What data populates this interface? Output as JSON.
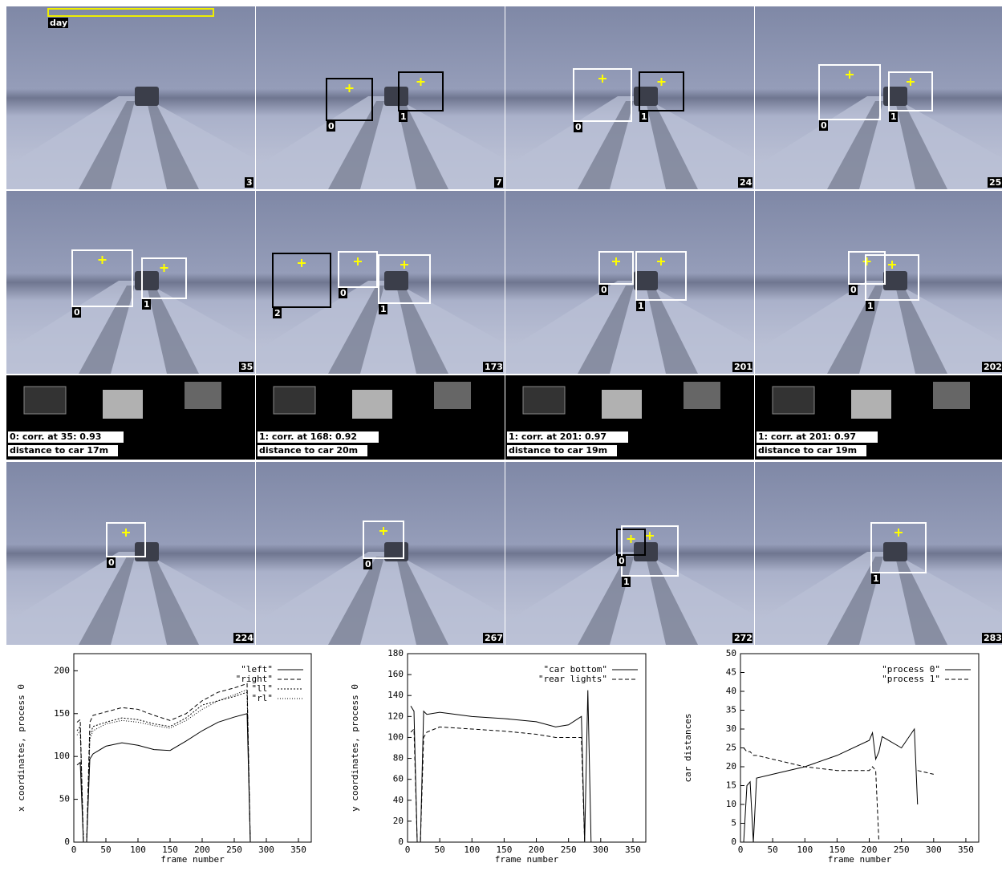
{
  "frames": [
    {
      "number": "3",
      "mode": "day",
      "ids": []
    },
    {
      "number": "7",
      "ids": [
        "0",
        "1"
      ]
    },
    {
      "number": "24",
      "ids": [
        "0",
        "1"
      ]
    },
    {
      "number": "25",
      "ids": [
        "0",
        "1"
      ]
    },
    {
      "number": "35",
      "ids": [
        "0",
        "1"
      ]
    },
    {
      "number": "173",
      "ids": [
        "2",
        "0",
        "1"
      ]
    },
    {
      "number": "201",
      "ids": [
        "0",
        "1"
      ]
    },
    {
      "number": "202",
      "ids": [
        "0",
        "1"
      ]
    },
    {
      "number": "224",
      "ids": [
        "0"
      ]
    },
    {
      "number": "267",
      "ids": [
        "0"
      ]
    },
    {
      "number": "272",
      "ids": [
        "0",
        "1"
      ]
    },
    {
      "number": "283",
      "ids": [
        "1"
      ]
    }
  ],
  "correlations": [
    {
      "corr": "0: corr. at 35: 0.93",
      "distance": "distance to car 17m"
    },
    {
      "corr": "1: corr. at 168: 0.92",
      "distance": "distance to car 20m"
    },
    {
      "corr": "1: corr. at 201: 0.97",
      "distance": "distance to car 19m"
    },
    {
      "corr": "1: corr. at 201: 0.97",
      "distance": "distance to car 19m"
    }
  ],
  "chart_data": [
    {
      "type": "line",
      "xlabel": "frame number",
      "ylabel": "x coordinates, process 0",
      "x": [
        5,
        10,
        15,
        20,
        25,
        30,
        50,
        75,
        100,
        125,
        150,
        175,
        200,
        225,
        250,
        270,
        275
      ],
      "xlim": [
        0,
        370
      ],
      "xticks": [
        0,
        50,
        100,
        150,
        200,
        250,
        300,
        350
      ],
      "ylim": [
        0,
        220
      ],
      "yticks": [
        0,
        50,
        100,
        150,
        200
      ],
      "legend": "upper right",
      "series": [
        {
          "name": "\"left\"",
          "color": "#000000",
          "values": [
            90,
            93,
            0,
            0,
            97,
            103,
            112,
            116,
            113,
            108,
            107,
            118,
            130,
            140,
            146,
            150,
            0
          ]
        },
        {
          "name": "\"right\"",
          "color": "#000000",
          "values": [
            140,
            143,
            0,
            0,
            140,
            148,
            152,
            157,
            155,
            148,
            142,
            150,
            165,
            175,
            180,
            185,
            0
          ]
        },
        {
          "name": "\"ll\"",
          "color": "#000000",
          "values": [
            130,
            135,
            0,
            0,
            125,
            135,
            140,
            145,
            143,
            138,
            135,
            145,
            160,
            165,
            170,
            175,
            0
          ]
        },
        {
          "name": "\"rl\"",
          "color": "#000000",
          "values": [
            125,
            130,
            0,
            0,
            120,
            130,
            138,
            142,
            140,
            136,
            133,
            142,
            155,
            165,
            172,
            178,
            0
          ]
        }
      ]
    },
    {
      "type": "line",
      "xlabel": "frame number",
      "ylabel": "y coordinates, process 0",
      "x": [
        5,
        10,
        15,
        20,
        25,
        30,
        50,
        100,
        150,
        200,
        230,
        250,
        270,
        275,
        280,
        285
      ],
      "xlim": [
        0,
        370
      ],
      "xticks": [
        0,
        50,
        100,
        150,
        200,
        250,
        300,
        350
      ],
      "ylim": [
        0,
        180
      ],
      "yticks": [
        0,
        20,
        40,
        60,
        80,
        100,
        120,
        140,
        160,
        180
      ],
      "legend": "upper right",
      "series": [
        {
          "name": "\"car bottom\"",
          "color": "#000000",
          "values": [
            130,
            125,
            0,
            0,
            125,
            122,
            124,
            120,
            118,
            115,
            110,
            112,
            120,
            0,
            145,
            0
          ]
        },
        {
          "name": "\"rear lights\"",
          "color": "#000000",
          "values": [
            105,
            108,
            0,
            0,
            100,
            105,
            110,
            108,
            106,
            103,
            100,
            100,
            100,
            0,
            null,
            null
          ]
        }
      ]
    },
    {
      "type": "line",
      "xlabel": "frame number",
      "ylabel": "car distances",
      "x": [
        5,
        10,
        15,
        20,
        25,
        50,
        100,
        150,
        200,
        205,
        210,
        215,
        220,
        250,
        270,
        275,
        300
      ],
      "xlim": [
        0,
        370
      ],
      "xticks": [
        0,
        50,
        100,
        150,
        200,
        250,
        300,
        350
      ],
      "ylim": [
        0,
        50
      ],
      "yticks": [
        0,
        5,
        10,
        15,
        20,
        25,
        30,
        35,
        40,
        45,
        50
      ],
      "legend": "upper right",
      "series": [
        {
          "name": "\"process 0\"",
          "color": "#000000",
          "values": [
            0,
            15,
            16,
            0,
            17,
            18,
            20,
            23,
            27,
            29,
            22,
            24,
            28,
            25,
            30,
            10,
            null
          ]
        },
        {
          "name": "\"process 1\"",
          "color": "#000000",
          "values": [
            25,
            24,
            24,
            23,
            23,
            22,
            20,
            19,
            19,
            20,
            19,
            0,
            null,
            null,
            null,
            19,
            18
          ]
        }
      ]
    }
  ]
}
